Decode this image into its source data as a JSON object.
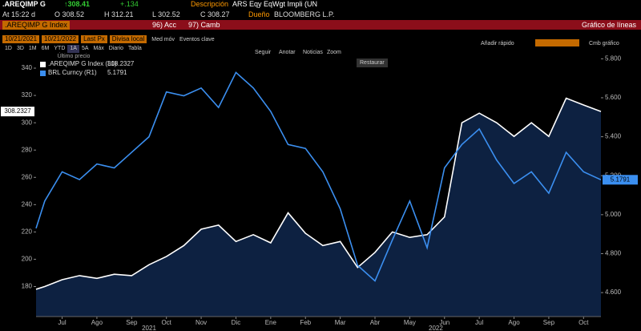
{
  "header": {
    "symbol": ".AREQIMP G",
    "last": "↑308.41",
    "change": "+.134",
    "desc_label": "Descripción",
    "desc": "ARS Eqy EqWgt Impli (UN",
    "time": "At 15:22 d",
    "open": "O 308.52",
    "high": "H 312.21",
    "low": "L 302.52",
    "close": "C 308.27",
    "owner_label": "Dueño",
    "owner": "BLOOMBERG L.P."
  },
  "toolbar": {
    "ticker": ".AREQIMP G Index",
    "acc": "96) Acc",
    "camb": "97) Camb",
    "chart_kind": "Gráfico de líneas",
    "start": "10/21/2021",
    "end": "10/21/2022",
    "field": "Last Px",
    "currency": "Divisa local",
    "ma": "Med móv",
    "events": "Eventos clave",
    "periods": [
      "1D",
      "3D",
      "1M",
      "6M",
      "YTD",
      "1A",
      "5A",
      "Máx"
    ],
    "freq": "Diario",
    "table": "Tabla",
    "add": "Añadir rápido",
    "change_chart": "Cmb gráfico",
    "tools": [
      "Seguir",
      "Anotar",
      "Noticias",
      "Zoom"
    ],
    "restore": "Restaurar"
  },
  "chart_data": {
    "type": "line",
    "legend_title": "Último precio",
    "area_color": "#0d2141",
    "x": [
      0.25,
      0.5,
      1,
      1.5,
      2,
      2.5,
      3,
      3.5,
      4,
      4.5,
      5,
      5.5,
      6,
      6.5,
      7,
      7.5,
      8,
      8.5,
      9,
      9.5,
      10,
      10.5,
      11,
      11.5,
      12,
      12.5,
      13,
      13.5,
      14,
      14.5,
      15,
      15.5,
      16,
      16.5
    ],
    "series": [
      {
        "name": ".AREQIMP G Index (L1)",
        "color": "#ffffff",
        "axis": "y",
        "values": [
          178,
          180,
          185,
          188,
          186,
          189,
          188,
          196,
          202,
          210,
          222,
          225,
          213,
          218,
          212,
          234,
          219,
          210,
          213,
          194,
          205,
          220,
          216,
          218,
          231,
          300,
          307,
          300,
          290,
          300,
          290,
          318,
          313,
          308.2327
        ]
      },
      {
        "name": "BRL Curncy (R1)",
        "color": "#3b8ff0",
        "axis": "y2",
        "values": [
          4.93,
          5.07,
          5.22,
          5.18,
          5.26,
          5.24,
          5.32,
          5.4,
          5.63,
          5.61,
          5.65,
          5.55,
          5.73,
          5.65,
          5.53,
          5.36,
          5.34,
          5.22,
          5.03,
          4.74,
          4.66,
          4.87,
          5.07,
          4.83,
          5.24,
          5.36,
          5.44,
          5.28,
          5.16,
          5.22,
          5.11,
          5.32,
          5.22,
          5.1791
        ]
      }
    ],
    "xlim": [
      0.25,
      16.5
    ],
    "xticks": [
      {
        "value": 1,
        "label": "Jul"
      },
      {
        "value": 2,
        "label": "Ago"
      },
      {
        "value": 3,
        "label": "Sep"
      },
      {
        "value": 4,
        "label": "Oct"
      },
      {
        "value": 5,
        "label": "Nov"
      },
      {
        "value": 6,
        "label": "Dic"
      },
      {
        "value": 7,
        "label": "Ene"
      },
      {
        "value": 8,
        "label": "Feb"
      },
      {
        "value": 9,
        "label": "Mar"
      },
      {
        "value": 10,
        "label": "Abr"
      },
      {
        "value": 11,
        "label": "May"
      },
      {
        "value": 12,
        "label": "Jun"
      },
      {
        "value": 13,
        "label": "Jul"
      },
      {
        "value": 14,
        "label": "Ago"
      },
      {
        "value": 15,
        "label": "Sep"
      },
      {
        "value": 16,
        "label": "Oct"
      }
    ],
    "year_ticks": [
      {
        "value": 3.5,
        "label": "2021"
      },
      {
        "value": 11.75,
        "label": "2022"
      }
    ],
    "ylim": [
      158,
      350
    ],
    "yticks": [
      180,
      200,
      220,
      240,
      260,
      280,
      300,
      320,
      340
    ],
    "y2lim": [
      4.477,
      5.822
    ],
    "y2ticks": [
      {
        "value": 4.6,
        "label": "4.600"
      },
      {
        "value": 4.8,
        "label": "4.800"
      },
      {
        "value": 5,
        "label": "5.000"
      },
      {
        "value": 5.2,
        "label": "5.200"
      },
      {
        "value": 5.4,
        "label": "5.400"
      },
      {
        "value": 5.6,
        "label": "5.600"
      },
      {
        "value": 5.8,
        "label": "5.800"
      }
    ]
  }
}
